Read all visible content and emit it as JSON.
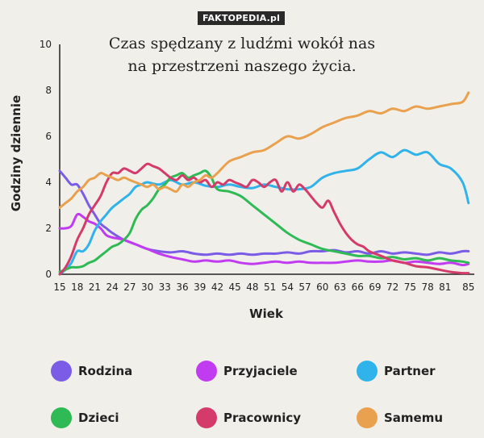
{
  "watermark": "FAKTOPEDIA.pl",
  "chart_data": {
    "type": "line",
    "title_lines": [
      "Czas spędzany z ludźmi wokół nas",
      "na przestrzeni naszego życia."
    ],
    "xlabel": "Wiek",
    "ylabel": "Godziny dziennie",
    "xlim": [
      15,
      86
    ],
    "ylim": [
      0,
      10
    ],
    "xticks": [
      15,
      18,
      21,
      24,
      27,
      30,
      33,
      36,
      39,
      42,
      45,
      48,
      51,
      54,
      57,
      60,
      63,
      66,
      69,
      72,
      75,
      78,
      81,
      85
    ],
    "yticks": [
      0,
      2,
      4,
      6,
      8,
      10
    ],
    "grid": false,
    "legend_position": "bottom",
    "series": [
      {
        "name": "Rodzina",
        "color": "#7b5ce6",
        "x": [
          15,
          16,
          17,
          18,
          19,
          20,
          21,
          22,
          23,
          24,
          26,
          28,
          30,
          32,
          34,
          36,
          38,
          40,
          42,
          44,
          46,
          48,
          50,
          52,
          54,
          56,
          58,
          60,
          62,
          64,
          66,
          68,
          70,
          72,
          74,
          76,
          78,
          80,
          82,
          84,
          85
        ],
        "y": [
          4.5,
          4.2,
          3.9,
          3.9,
          3.5,
          3.0,
          2.6,
          2.2,
          2.0,
          1.8,
          1.5,
          1.3,
          1.1,
          1.0,
          0.95,
          1.0,
          0.9,
          0.85,
          0.9,
          0.85,
          0.9,
          0.85,
          0.9,
          0.9,
          0.95,
          0.9,
          1.0,
          1.0,
          1.05,
          0.95,
          1.0,
          0.9,
          1.0,
          0.9,
          0.95,
          0.9,
          0.85,
          0.95,
          0.9,
          1.0,
          1.0
        ]
      },
      {
        "name": "Przyjaciele",
        "color": "#c13cf0",
        "x": [
          15,
          16,
          17,
          18,
          19,
          20,
          21,
          22,
          23,
          24,
          26,
          28,
          30,
          32,
          34,
          36,
          38,
          40,
          42,
          44,
          46,
          48,
          50,
          52,
          54,
          56,
          58,
          60,
          62,
          64,
          66,
          68,
          70,
          72,
          74,
          76,
          78,
          80,
          82,
          84,
          85
        ],
        "y": [
          2.0,
          2.0,
          2.1,
          2.6,
          2.5,
          2.3,
          2.2,
          2.0,
          1.7,
          1.6,
          1.5,
          1.3,
          1.1,
          0.9,
          0.75,
          0.65,
          0.55,
          0.6,
          0.55,
          0.6,
          0.5,
          0.45,
          0.5,
          0.55,
          0.5,
          0.55,
          0.5,
          0.5,
          0.5,
          0.55,
          0.6,
          0.55,
          0.55,
          0.6,
          0.5,
          0.55,
          0.5,
          0.45,
          0.5,
          0.4,
          0.45
        ]
      },
      {
        "name": "Partner",
        "color": "#30b3ea",
        "x": [
          15,
          16,
          17,
          18,
          19,
          20,
          21,
          22,
          23,
          24,
          25,
          26,
          27,
          28,
          29,
          30,
          32,
          34,
          36,
          38,
          40,
          42,
          44,
          46,
          48,
          50,
          52,
          54,
          56,
          58,
          60,
          62,
          64,
          66,
          68,
          70,
          72,
          74,
          76,
          78,
          80,
          82,
          84,
          85
        ],
        "y": [
          0.0,
          0.2,
          0.5,
          1.0,
          1.0,
          1.3,
          1.9,
          2.3,
          2.6,
          2.9,
          3.1,
          3.3,
          3.5,
          3.8,
          3.9,
          4.0,
          3.9,
          4.1,
          3.9,
          4.0,
          3.85,
          3.8,
          3.9,
          3.8,
          3.75,
          3.9,
          3.8,
          3.7,
          3.7,
          3.8,
          4.2,
          4.4,
          4.5,
          4.6,
          5.0,
          5.3,
          5.1,
          5.4,
          5.2,
          5.3,
          4.8,
          4.6,
          4.0,
          3.1
        ]
      },
      {
        "name": "Dzieci",
        "color": "#2fba55",
        "x": [
          15,
          16,
          17,
          18,
          19,
          20,
          21,
          22,
          23,
          24,
          25,
          26,
          27,
          28,
          29,
          30,
          31,
          32,
          33,
          34,
          35,
          36,
          37,
          38,
          39,
          40,
          41,
          42,
          44,
          46,
          48,
          50,
          52,
          54,
          56,
          58,
          60,
          62,
          64,
          66,
          68,
          70,
          72,
          74,
          76,
          78,
          80,
          82,
          84,
          85
        ],
        "y": [
          0.1,
          0.2,
          0.3,
          0.3,
          0.35,
          0.5,
          0.6,
          0.8,
          1.0,
          1.2,
          1.3,
          1.5,
          1.8,
          2.4,
          2.8,
          3.0,
          3.3,
          3.7,
          3.9,
          4.2,
          4.3,
          4.4,
          4.2,
          4.3,
          4.4,
          4.5,
          4.2,
          3.7,
          3.6,
          3.4,
          3.0,
          2.6,
          2.2,
          1.8,
          1.5,
          1.3,
          1.1,
          1.0,
          0.9,
          0.8,
          0.8,
          0.7,
          0.75,
          0.65,
          0.7,
          0.6,
          0.7,
          0.6,
          0.55,
          0.5
        ]
      },
      {
        "name": "Pracownicy",
        "color": "#d43b6b",
        "x": [
          15,
          16,
          17,
          18,
          19,
          20,
          21,
          22,
          23,
          24,
          25,
          26,
          27,
          28,
          29,
          30,
          31,
          32,
          33,
          34,
          35,
          36,
          37,
          38,
          39,
          40,
          41,
          42,
          43,
          44,
          45,
          46,
          47,
          48,
          49,
          50,
          51,
          52,
          53,
          54,
          55,
          56,
          57,
          58,
          59,
          60,
          61,
          62,
          63,
          64,
          65,
          66,
          67,
          68,
          70,
          72,
          74,
          76,
          78,
          80,
          82,
          84,
          85
        ],
        "y": [
          0.0,
          0.3,
          0.8,
          1.5,
          2.0,
          2.6,
          3.0,
          3.4,
          4.0,
          4.4,
          4.4,
          4.6,
          4.5,
          4.4,
          4.6,
          4.8,
          4.7,
          4.6,
          4.4,
          4.2,
          4.1,
          4.3,
          4.1,
          4.2,
          4.0,
          4.1,
          3.8,
          4.0,
          3.9,
          4.1,
          4.0,
          3.9,
          3.8,
          4.1,
          4.0,
          3.8,
          4.0,
          4.1,
          3.6,
          4.0,
          3.6,
          3.9,
          3.7,
          3.4,
          3.1,
          2.9,
          3.2,
          2.7,
          2.2,
          1.8,
          1.5,
          1.3,
          1.2,
          1.0,
          0.8,
          0.6,
          0.5,
          0.35,
          0.3,
          0.2,
          0.1,
          0.05,
          0.05
        ]
      },
      {
        "name": "Samemu",
        "color": "#e9a14f",
        "x": [
          15,
          16,
          17,
          18,
          19,
          20,
          21,
          22,
          23,
          24,
          25,
          26,
          27,
          28,
          29,
          30,
          31,
          32,
          33,
          34,
          35,
          36,
          37,
          38,
          39,
          40,
          41,
          42,
          44,
          46,
          48,
          50,
          52,
          54,
          56,
          58,
          60,
          62,
          64,
          66,
          68,
          70,
          72,
          74,
          76,
          78,
          80,
          82,
          84,
          85
        ],
        "y": [
          2.9,
          3.1,
          3.3,
          3.6,
          3.8,
          4.1,
          4.2,
          4.4,
          4.3,
          4.2,
          4.1,
          4.2,
          4.1,
          4.0,
          3.9,
          3.8,
          3.9,
          3.7,
          3.8,
          3.7,
          3.6,
          3.9,
          3.8,
          4.0,
          4.1,
          4.3,
          4.2,
          4.4,
          4.9,
          5.1,
          5.3,
          5.4,
          5.7,
          6.0,
          5.9,
          6.1,
          6.4,
          6.6,
          6.8,
          6.9,
          7.1,
          7.0,
          7.2,
          7.1,
          7.3,
          7.2,
          7.3,
          7.4,
          7.5,
          7.9
        ]
      }
    ]
  },
  "legend": [
    {
      "label": "Rodzina",
      "color": "#7b5ce6"
    },
    {
      "label": "Przyjaciele",
      "color": "#c13cf0"
    },
    {
      "label": "Partner",
      "color": "#30b3ea"
    },
    {
      "label": "Dzieci",
      "color": "#2fba55"
    },
    {
      "label": "Pracownicy",
      "color": "#d43b6b"
    },
    {
      "label": "Samemu",
      "color": "#e9a14f"
    }
  ]
}
